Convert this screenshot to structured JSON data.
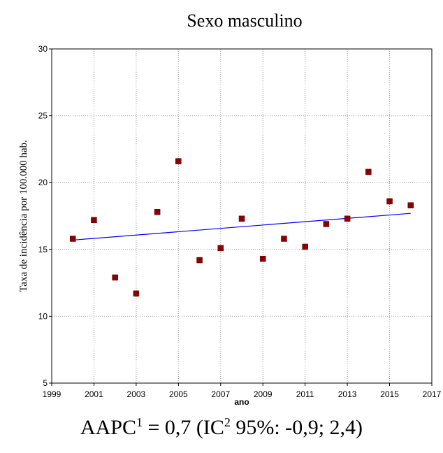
{
  "chart_data": {
    "type": "scatter",
    "title": "Sexo masculino",
    "xlabel": "ano",
    "ylabel": "Taxa de incidência por 100.000 hab.",
    "xlim": [
      1999,
      2017
    ],
    "ylim": [
      5,
      30
    ],
    "x_ticks": [
      1999,
      2001,
      2003,
      2005,
      2007,
      2009,
      2011,
      2013,
      2015,
      2017
    ],
    "y_ticks": [
      5,
      10,
      15,
      20,
      25,
      30
    ],
    "grid": true,
    "colors": {
      "points": "#8b0000",
      "trend": "#0000ff"
    },
    "points": [
      {
        "x": 2000,
        "y": 15.8
      },
      {
        "x": 2001,
        "y": 17.2
      },
      {
        "x": 2002,
        "y": 12.9
      },
      {
        "x": 2003,
        "y": 11.7
      },
      {
        "x": 2004,
        "y": 17.8
      },
      {
        "x": 2005,
        "y": 21.6
      },
      {
        "x": 2006,
        "y": 14.2
      },
      {
        "x": 2007,
        "y": 15.1
      },
      {
        "x": 2008,
        "y": 17.3
      },
      {
        "x": 2009,
        "y": 14.3
      },
      {
        "x": 2010,
        "y": 15.8
      },
      {
        "x": 2011,
        "y": 15.2
      },
      {
        "x": 2012,
        "y": 16.9
      },
      {
        "x": 2013,
        "y": 17.3
      },
      {
        "x": 2014,
        "y": 20.8
      },
      {
        "x": 2015,
        "y": 18.6
      },
      {
        "x": 2016,
        "y": 18.3
      }
    ],
    "trend_line": [
      {
        "x": 2000,
        "y": 15.7
      },
      {
        "x": 2016,
        "y": 17.7
      }
    ]
  },
  "caption": {
    "prefix": "AAPC",
    "sup1": "1",
    "mid": " = 0,7 (IC",
    "sup2": "2",
    "suffix": " 95%: -0,9; 2,4)"
  }
}
